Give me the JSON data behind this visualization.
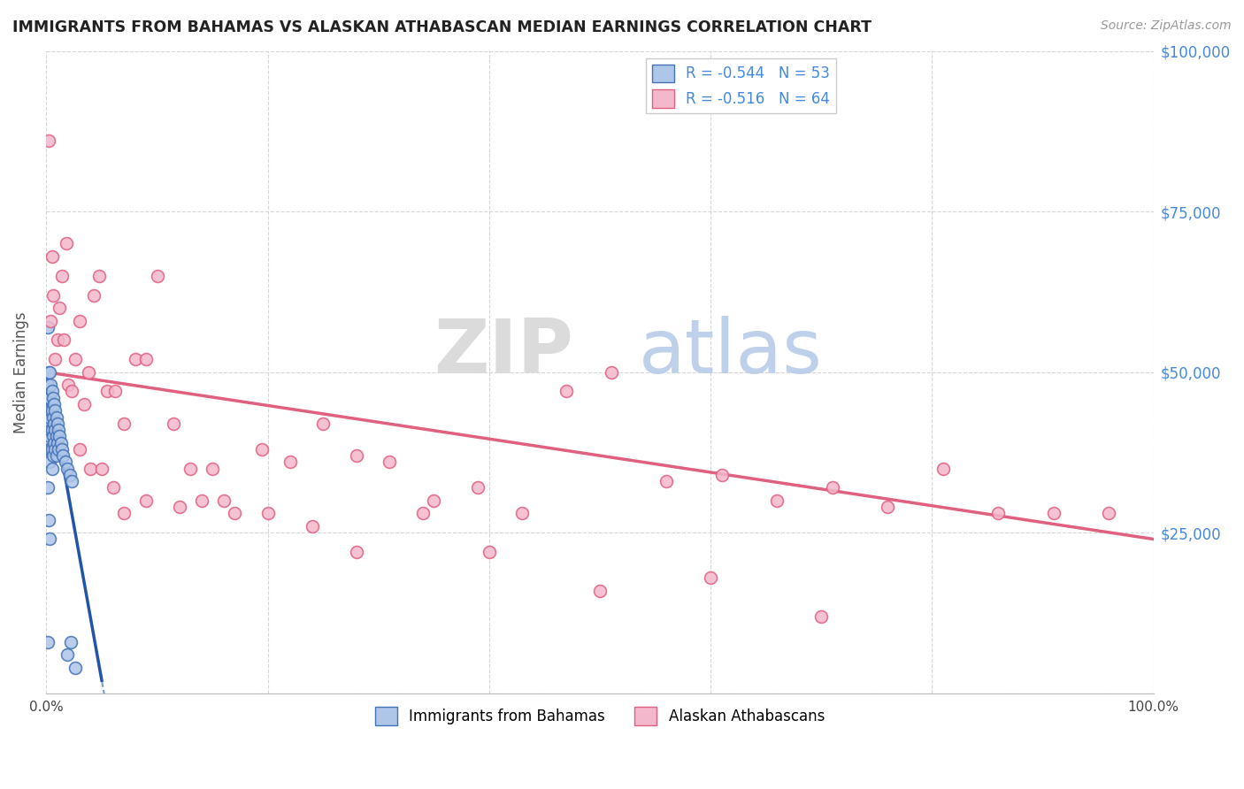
{
  "title": "IMMIGRANTS FROM BAHAMAS VS ALASKAN ATHABASCAN MEDIAN EARNINGS CORRELATION CHART",
  "source": "Source: ZipAtlas.com",
  "ylabel": "Median Earnings",
  "series1_label": "Immigrants from Bahamas",
  "series2_label": "Alaskan Athabascans",
  "R1": -0.544,
  "N1": 53,
  "R2": -0.516,
  "N2": 64,
  "color1_fill": "#aec6e8",
  "color1_edge": "#4472b8",
  "color2_fill": "#f4b8cc",
  "color2_edge": "#e06080",
  "color1_line": "#2255aa",
  "color2_line": "#e06080",
  "background": "#ffffff",
  "grid_color": "#cccccc",
  "title_color": "#222222",
  "axis_label_color": "#555555",
  "right_axis_color": "#4488dd",
  "watermark_zip": "ZIP",
  "watermark_atlas": "atlas",
  "xlim": [
    0.0,
    1.0
  ],
  "ylim": [
    0,
    100000
  ],
  "yticks": [
    0,
    25000,
    50000,
    75000,
    100000
  ],
  "ytick_labels": [
    "",
    "$25,000",
    "$50,000",
    "$75,000",
    "$100,000"
  ],
  "xtick_positions": [
    0.0,
    0.2,
    0.4,
    0.6,
    0.8,
    1.0
  ],
  "xtick_labels": [
    "0.0%",
    "",
    "",
    "",
    "",
    "100.0%"
  ],
  "s1_x": [
    0.001,
    0.001,
    0.001,
    0.002,
    0.002,
    0.002,
    0.002,
    0.003,
    0.003,
    0.003,
    0.003,
    0.003,
    0.004,
    0.004,
    0.004,
    0.004,
    0.005,
    0.005,
    0.005,
    0.005,
    0.005,
    0.006,
    0.006,
    0.006,
    0.006,
    0.007,
    0.007,
    0.007,
    0.008,
    0.008,
    0.008,
    0.009,
    0.009,
    0.009,
    0.01,
    0.01,
    0.011,
    0.011,
    0.012,
    0.013,
    0.014,
    0.015,
    0.017,
    0.019,
    0.021,
    0.023,
    0.001,
    0.001,
    0.002,
    0.003,
    0.019,
    0.022,
    0.026
  ],
  "s1_y": [
    57000,
    48000,
    44000,
    50000,
    46000,
    42000,
    38000,
    50000,
    46000,
    43000,
    40000,
    36000,
    48000,
    44000,
    41000,
    38000,
    47000,
    44000,
    41000,
    38000,
    35000,
    46000,
    43000,
    40000,
    37000,
    45000,
    42000,
    39000,
    44000,
    41000,
    38000,
    43000,
    40000,
    37000,
    42000,
    39000,
    41000,
    38000,
    40000,
    39000,
    38000,
    37000,
    36000,
    35000,
    34000,
    33000,
    32000,
    8000,
    27000,
    24000,
    6000,
    8000,
    4000
  ],
  "s2_x": [
    0.002,
    0.004,
    0.005,
    0.006,
    0.008,
    0.01,
    0.012,
    0.014,
    0.016,
    0.018,
    0.02,
    0.023,
    0.026,
    0.03,
    0.034,
    0.038,
    0.043,
    0.048,
    0.055,
    0.062,
    0.07,
    0.08,
    0.09,
    0.1,
    0.115,
    0.13,
    0.15,
    0.17,
    0.195,
    0.22,
    0.25,
    0.28,
    0.31,
    0.35,
    0.39,
    0.43,
    0.47,
    0.51,
    0.56,
    0.61,
    0.66,
    0.71,
    0.76,
    0.81,
    0.86,
    0.91,
    0.96,
    0.03,
    0.04,
    0.05,
    0.06,
    0.07,
    0.09,
    0.12,
    0.14,
    0.16,
    0.2,
    0.24,
    0.28,
    0.34,
    0.4,
    0.5,
    0.6,
    0.7
  ],
  "s2_y": [
    86000,
    58000,
    68000,
    62000,
    52000,
    55000,
    60000,
    65000,
    55000,
    70000,
    48000,
    47000,
    52000,
    58000,
    45000,
    50000,
    62000,
    65000,
    47000,
    47000,
    42000,
    52000,
    52000,
    65000,
    42000,
    35000,
    35000,
    28000,
    38000,
    36000,
    42000,
    37000,
    36000,
    30000,
    32000,
    28000,
    47000,
    50000,
    33000,
    34000,
    30000,
    32000,
    29000,
    35000,
    28000,
    28000,
    28000,
    38000,
    35000,
    35000,
    32000,
    28000,
    30000,
    29000,
    30000,
    30000,
    28000,
    26000,
    22000,
    28000,
    22000,
    16000,
    18000,
    12000
  ],
  "trendline1_x0": 0.0,
  "trendline1_y0": 50000,
  "trendline1_x1": 0.05,
  "trendline1_y1": 2000,
  "trendline2_x0": 0.0,
  "trendline2_y0": 50000,
  "trendline2_x1": 1.0,
  "trendline2_y1": 24000
}
